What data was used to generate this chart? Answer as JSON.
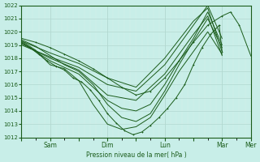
{
  "background_color": "#c8eee8",
  "grid_color_major": "#b0d8d0",
  "grid_color_minor": "#d8f0ec",
  "line_color": "#1a5c1a",
  "marker_color": "#1a5c1a",
  "ylabel": "Pression niveau de la mer( hPa )",
  "ylim": [
    1012,
    1022
  ],
  "yticks": [
    1012,
    1013,
    1014,
    1015,
    1016,
    1017,
    1018,
    1019,
    1020,
    1021,
    1022
  ],
  "xtick_labels": [
    "",
    "Sam",
    "",
    "Dim",
    "",
    "Lun",
    "",
    "Mar",
    "Mer"
  ],
  "xtick_positions": [
    0,
    1,
    2,
    3,
    4,
    5,
    6,
    7,
    8
  ],
  "day_lines": [
    1,
    3,
    5,
    7
  ],
  "x_total": 8,
  "lines": [
    {
      "x": [
        0.0,
        0.3,
        0.6,
        0.9,
        1.2,
        1.5,
        1.8,
        2.1,
        2.4,
        2.7,
        3.0,
        3.3,
        3.6,
        3.9,
        4.2,
        4.5,
        4.8,
        5.1,
        5.4,
        5.7,
        6.0,
        6.3,
        6.6,
        6.9,
        7.0
      ],
      "y": [
        1019.2,
        1018.8,
        1018.3,
        1017.8,
        1017.4,
        1017.1,
        1016.5,
        1016.2,
        1015.6,
        1014.8,
        1013.8,
        1013.1,
        1012.5,
        1012.2,
        1012.4,
        1012.9,
        1013.5,
        1014.2,
        1015.0,
        1016.0,
        1017.5,
        1018.8,
        1019.8,
        1020.5,
        1018.5
      ],
      "with_markers": true
    },
    {
      "x": [
        0.0,
        0.5,
        1.0,
        1.5,
        2.0,
        2.5,
        3.0,
        3.5,
        4.0,
        4.5,
        5.0,
        5.5,
        6.0,
        6.5,
        7.0
      ],
      "y": [
        1019.3,
        1018.6,
        1017.5,
        1017.2,
        1016.3,
        1014.5,
        1013.0,
        1012.6,
        1012.8,
        1013.5,
        1015.2,
        1017.0,
        1018.5,
        1020.0,
        1018.3
      ],
      "with_markers": false
    },
    {
      "x": [
        0.0,
        0.5,
        1.0,
        1.5,
        2.0,
        2.5,
        3.0,
        3.5,
        4.0,
        4.5,
        5.0,
        5.5,
        6.0,
        6.5,
        7.0
      ],
      "y": [
        1019.4,
        1018.9,
        1018.2,
        1017.5,
        1017.0,
        1016.0,
        1014.5,
        1013.5,
        1013.2,
        1013.8,
        1015.5,
        1017.5,
        1019.3,
        1021.0,
        1018.8
      ],
      "with_markers": false
    },
    {
      "x": [
        0.0,
        0.5,
        1.0,
        1.5,
        2.0,
        2.5,
        3.0,
        3.5,
        4.0,
        4.5,
        5.0,
        5.5,
        6.0,
        6.5,
        7.0
      ],
      "y": [
        1019.2,
        1018.5,
        1017.8,
        1017.3,
        1016.8,
        1015.8,
        1014.8,
        1014.2,
        1014.0,
        1014.5,
        1016.0,
        1017.8,
        1019.5,
        1021.5,
        1019.0
      ],
      "with_markers": false
    },
    {
      "x": [
        0.0,
        1.0,
        2.0,
        3.0,
        4.0,
        5.0,
        6.0,
        6.5,
        7.0
      ],
      "y": [
        1019.1,
        1018.0,
        1017.1,
        1015.2,
        1014.8,
        1016.8,
        1019.8,
        1021.2,
        1018.2
      ],
      "with_markers": false
    },
    {
      "x": [
        0.0,
        1.0,
        2.0,
        3.0,
        4.0,
        5.0,
        6.0,
        6.5,
        7.0
      ],
      "y": [
        1019.0,
        1018.1,
        1017.3,
        1016.0,
        1015.5,
        1017.5,
        1020.5,
        1022.0,
        1019.5
      ],
      "with_markers": false
    },
    {
      "x": [
        0.0,
        1.0,
        2.0,
        3.0,
        4.0,
        5.0,
        6.0,
        6.5,
        7.0
      ],
      "y": [
        1019.3,
        1018.4,
        1017.6,
        1016.5,
        1015.8,
        1018.0,
        1020.8,
        1021.8,
        1018.5
      ],
      "with_markers": false
    },
    {
      "x": [
        0.0,
        0.5,
        1.0,
        1.5,
        2.0,
        2.5,
        3.0,
        3.5,
        4.0,
        4.5,
        5.0,
        5.5,
        6.0,
        6.5,
        7.0,
        7.3,
        7.6,
        8.0
      ],
      "y": [
        1019.5,
        1019.2,
        1018.8,
        1018.3,
        1017.8,
        1017.2,
        1016.5,
        1015.8,
        1015.2,
        1015.5,
        1016.5,
        1017.8,
        1019.2,
        1020.5,
        1021.2,
        1021.5,
        1020.5,
        1018.2
      ],
      "with_markers": true
    }
  ]
}
